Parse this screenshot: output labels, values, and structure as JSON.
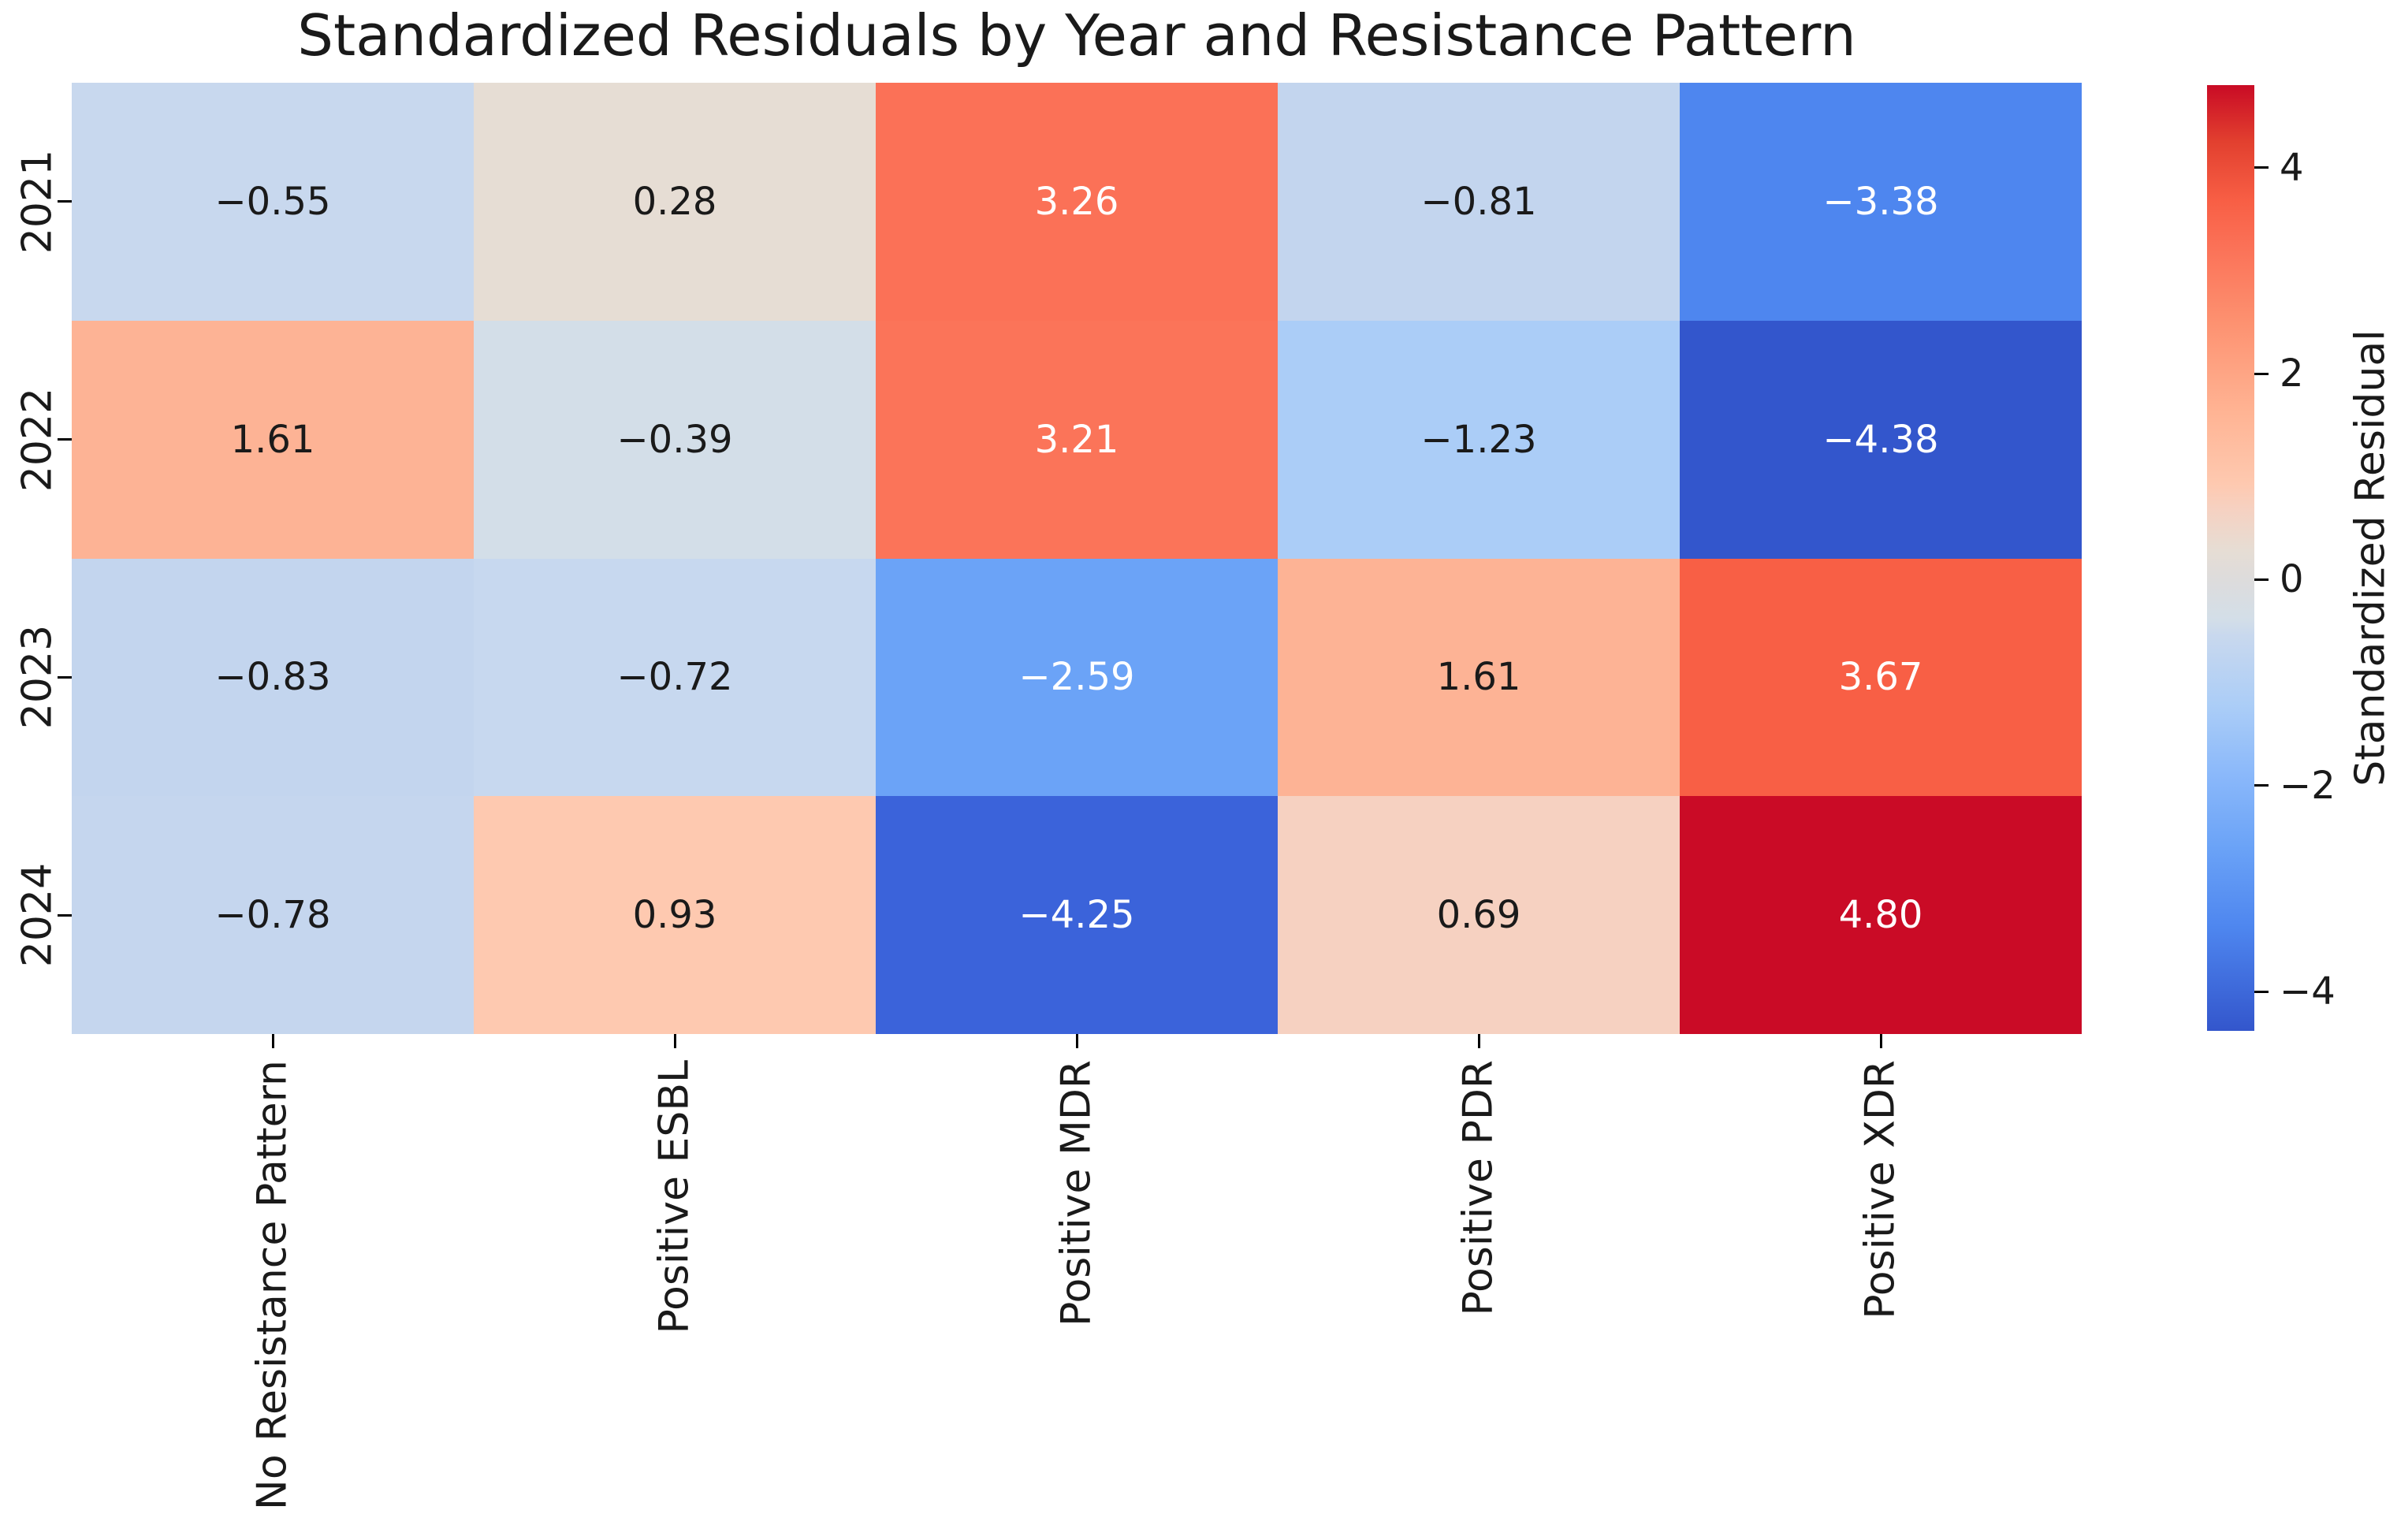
{
  "title": "Standardized Residuals by Year and Resistance Pattern",
  "chart_data": {
    "type": "heatmap",
    "title": "Standardized Residuals by Year and Resistance Pattern",
    "rows": [
      "2021",
      "2022",
      "2023",
      "2024"
    ],
    "columns": [
      "No Resistance Pattern",
      "Positive ESBL",
      "Positive MDR",
      "Positive PDR",
      "Positive XDR"
    ],
    "values": [
      [
        -0.55,
        0.28,
        3.26,
        -0.81,
        -3.38
      ],
      [
        1.61,
        -0.39,
        3.21,
        -1.23,
        -4.38
      ],
      [
        -0.83,
        -0.72,
        -2.59,
        1.61,
        3.67
      ],
      [
        -0.78,
        0.93,
        -4.25,
        0.69,
        4.8
      ]
    ],
    "value_labels": [
      [
        "−0.55",
        "0.28",
        "3.26",
        "−0.81",
        "−3.38"
      ],
      [
        "1.61",
        "−0.39",
        "3.21",
        "−1.23",
        "−4.38"
      ],
      [
        "−0.83",
        "−0.72",
        "−2.59",
        "1.61",
        "3.67"
      ],
      [
        "−0.78",
        "0.93",
        "−4.25",
        "0.69",
        "4.80"
      ]
    ],
    "cell_colors": [
      [
        "#c8d8ee",
        "#e6ddd4",
        "#fb7157",
        "#c3d5ee",
        "#4e86ef"
      ],
      [
        "#fdb395",
        "#d3dee8",
        "#fb7459",
        "#abcdf7",
        "#3356cc"
      ],
      [
        "#c3d5ee",
        "#c7d8ef",
        "#6ba3f7",
        "#fdb395",
        "#f85f45"
      ],
      [
        "#c5d6ee",
        "#fec9b0",
        "#3b63da",
        "#f6d1c1",
        "#ca0b26"
      ]
    ],
    "cell_text_colors": [
      [
        "dark",
        "dark",
        "light",
        "dark",
        "light"
      ],
      [
        "dark",
        "dark",
        "light",
        "dark",
        "light"
      ],
      [
        "dark",
        "dark",
        "light",
        "dark",
        "light"
      ],
      [
        "dark",
        "dark",
        "light",
        "dark",
        "light"
      ]
    ],
    "text_dark": "#1a1a1a",
    "text_light": "#ffffff",
    "colormap": "coolwarm",
    "grid": false,
    "colorbar": {
      "label": "Standardized Residual",
      "position": "right",
      "vmin": -4.38,
      "vmax": 4.8,
      "tick_values": [
        4,
        2,
        0,
        -2,
        -4
      ],
      "tick_labels": [
        "4",
        "2",
        "0",
        "−2",
        "−4"
      ],
      "gradient": [
        [
          "#c90b25",
          0
        ],
        [
          "#e2402f",
          6
        ],
        [
          "#f85f45",
          12.3
        ],
        [
          "#fb7157",
          17
        ],
        [
          "#fd9170",
          25
        ],
        [
          "#ffb494",
          34.7
        ],
        [
          "#fec9b0",
          42.2
        ],
        [
          "#f6d1c1",
          44.8
        ],
        [
          "#e6ddd4",
          49.2
        ],
        [
          "#dddcdc",
          52.3
        ],
        [
          "#d3dee8",
          56.5
        ],
        [
          "#c8d8ee",
          58.3
        ],
        [
          "#abcdf7",
          65.7
        ],
        [
          "#8ab8fa",
          73
        ],
        [
          "#6ba3f7",
          80.5
        ],
        [
          "#4e86ef",
          89.1
        ],
        [
          "#3356cc",
          100
        ]
      ]
    }
  }
}
